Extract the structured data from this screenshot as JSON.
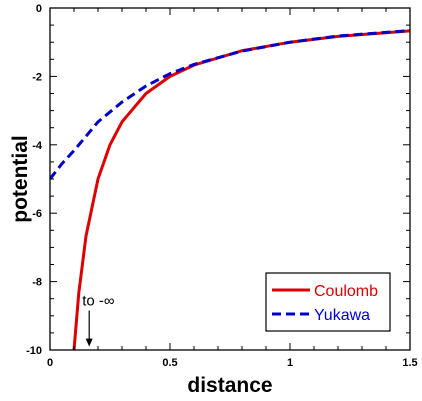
{
  "chart_data": {
    "type": "line",
    "title": "",
    "xlabel": "distance",
    "ylabel": "potential",
    "xlim": [
      0,
      1.5
    ],
    "ylim": [
      -10,
      0
    ],
    "x_ticks": [
      0,
      0.5,
      1,
      1.5
    ],
    "x_tick_labels": [
      "0",
      "0.5",
      "1",
      "1.5"
    ],
    "y_ticks": [
      0,
      -2,
      -4,
      -6,
      -8,
      -10
    ],
    "y_tick_labels": [
      "0",
      "-2",
      "-4",
      "-6",
      "-8",
      "-10"
    ],
    "grid": false,
    "legend": {
      "placement": "bottom-right"
    },
    "series": [
      {
        "name": "Coulomb",
        "style": "solid",
        "color": "#dd0000",
        "x": [
          0.1,
          0.12,
          0.15,
          0.2,
          0.25,
          0.3,
          0.4,
          0.5,
          0.6,
          0.8,
          1.0,
          1.2,
          1.5
        ],
        "y": [
          -10.0,
          -8.33,
          -6.67,
          -5.0,
          -4.0,
          -3.33,
          -2.5,
          -2.0,
          -1.67,
          -1.25,
          -1.0,
          -0.83,
          -0.67
        ]
      },
      {
        "name": "Yukawa",
        "style": "dashed",
        "color": "#0000cc",
        "x": [
          0.0,
          0.05,
          0.1,
          0.2,
          0.3,
          0.4,
          0.5,
          0.6,
          0.8,
          1.0,
          1.2,
          1.5
        ],
        "y": [
          -5.0,
          -4.55,
          -4.17,
          -3.33,
          -2.75,
          -2.28,
          -1.92,
          -1.65,
          -1.26,
          -1.0,
          -0.82,
          -0.66
        ]
      }
    ],
    "annotations": [
      {
        "text": "to -∞",
        "x": 0.155,
        "y": -8.7,
        "arrow_to": [
          0.155,
          -9.9
        ]
      }
    ]
  }
}
